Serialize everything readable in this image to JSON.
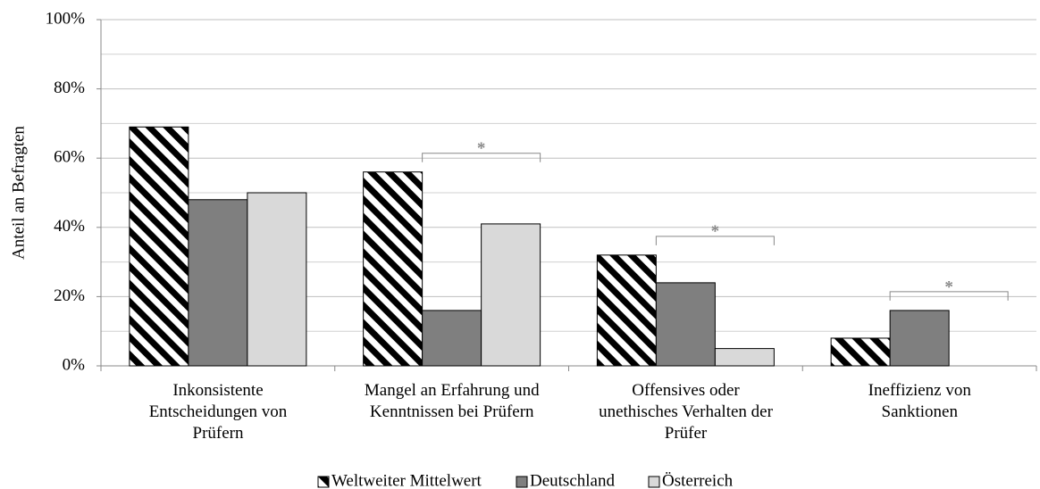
{
  "chart_data": {
    "type": "bar",
    "ylabel": "Anteil an Befragten",
    "categories": [
      "Inkonsistente\nEntscheidungen von\nPrüfern",
      "Mangel an Erfahrung und\nKenntnissen bei Prüfern",
      "Offensives oder\nunethisches Verhalten der\nPrüfer",
      "Ineffizienz von\nSanktionen"
    ],
    "series": [
      {
        "name": "Weltweiter Mittelwert",
        "color": "#000000",
        "hatch": true,
        "values": [
          69,
          56,
          32,
          8
        ]
      },
      {
        "name": "Deutschland",
        "color": "#7f7f7f",
        "values": [
          48,
          16,
          24,
          16
        ]
      },
      {
        "name": "Österreich",
        "color": "#d9d9d9",
        "values": [
          50,
          41,
          5,
          0
        ]
      }
    ],
    "ylim": [
      0,
      100
    ],
    "yticks": [
      {
        "value": 0,
        "label": "0%"
      },
      {
        "value": 20,
        "label": "20%"
      },
      {
        "value": 40,
        "label": "40%"
      },
      {
        "value": 60,
        "label": "60%"
      },
      {
        "value": 80,
        "label": "80%"
      },
      {
        "value": 100,
        "label": "100%"
      }
    ],
    "minor_yticks": [
      10,
      30,
      50,
      70,
      90
    ],
    "grid": true,
    "legend": "bottom",
    "annotations": [
      {
        "category": 1,
        "text": "*"
      },
      {
        "category": 2,
        "text": "*"
      },
      {
        "category": 3,
        "text": "*"
      }
    ]
  }
}
